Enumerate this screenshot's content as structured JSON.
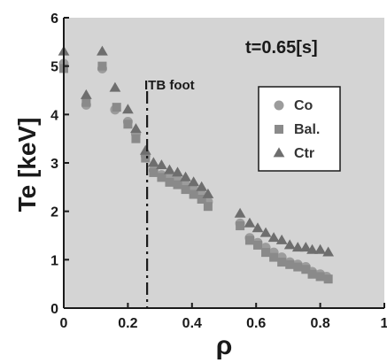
{
  "chart_data": {
    "type": "scatter",
    "title": "",
    "xlabel": "ρ",
    "ylabel": "Te [keV]",
    "xlim": [
      0,
      1
    ],
    "ylim": [
      0,
      6
    ],
    "xticks": [
      "0",
      "0.2",
      "0.4",
      "0.6",
      "0.8",
      "1"
    ],
    "yticks": [
      "0",
      "1",
      "2",
      "3",
      "4",
      "5",
      "6"
    ],
    "grid": false,
    "legend_position": "upper-right",
    "annotations": {
      "time": "t=0.65[s]",
      "itb_label": "ITB foot",
      "itb_x": 0.26
    },
    "colors": {
      "plot_background": "#d4d4d4",
      "Co": "#9c9c9c",
      "Bal.": "#8a8a8a",
      "Ctr": "#6e6e6e",
      "axis": "#1a1a1a"
    },
    "series": [
      {
        "name": "Co",
        "marker": "circle",
        "x": [
          0.0,
          0.07,
          0.12,
          0.16,
          0.2,
          0.225,
          0.255,
          0.28,
          0.305,
          0.33,
          0.355,
          0.38,
          0.405,
          0.43,
          0.45,
          0.55,
          0.58,
          0.605,
          0.63,
          0.655,
          0.68,
          0.705,
          0.73,
          0.755,
          0.775,
          0.8,
          0.82
        ],
        "y": [
          5.05,
          4.2,
          4.95,
          4.1,
          3.85,
          3.6,
          3.15,
          2.85,
          2.75,
          2.7,
          2.65,
          2.55,
          2.45,
          2.35,
          2.2,
          1.75,
          1.45,
          1.35,
          1.25,
          1.15,
          1.05,
          0.95,
          0.9,
          0.85,
          0.75,
          0.7,
          0.65
        ]
      },
      {
        "name": "Bal.",
        "marker": "square",
        "x": [
          0.0,
          0.07,
          0.12,
          0.165,
          0.2,
          0.225,
          0.255,
          0.28,
          0.305,
          0.33,
          0.355,
          0.38,
          0.405,
          0.43,
          0.45,
          0.55,
          0.58,
          0.605,
          0.63,
          0.655,
          0.68,
          0.705,
          0.73,
          0.755,
          0.775,
          0.8,
          0.825
        ],
        "y": [
          4.95,
          4.25,
          5.0,
          4.15,
          3.8,
          3.5,
          3.1,
          2.8,
          2.7,
          2.6,
          2.55,
          2.45,
          2.35,
          2.25,
          2.1,
          1.7,
          1.4,
          1.3,
          1.15,
          1.05,
          0.95,
          0.9,
          0.85,
          0.8,
          0.7,
          0.65,
          0.6
        ]
      },
      {
        "name": "Ctr",
        "marker": "triangle",
        "x": [
          0.0,
          0.07,
          0.12,
          0.16,
          0.2,
          0.225,
          0.255,
          0.28,
          0.305,
          0.33,
          0.355,
          0.38,
          0.405,
          0.43,
          0.45,
          0.55,
          0.58,
          0.605,
          0.63,
          0.655,
          0.68,
          0.705,
          0.73,
          0.755,
          0.775,
          0.8,
          0.825
        ],
        "y": [
          5.3,
          4.4,
          5.3,
          4.55,
          4.1,
          3.7,
          3.25,
          3.0,
          2.95,
          2.85,
          2.8,
          2.7,
          2.6,
          2.5,
          2.35,
          1.95,
          1.75,
          1.65,
          1.55,
          1.45,
          1.4,
          1.3,
          1.25,
          1.25,
          1.2,
          1.2,
          1.15
        ]
      }
    ]
  }
}
